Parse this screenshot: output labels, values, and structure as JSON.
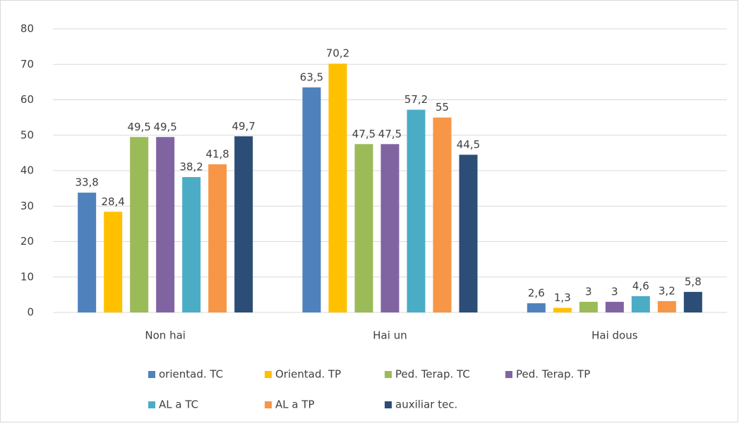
{
  "chart_data": {
    "type": "bar",
    "categories": [
      "Non hai",
      "Hai un",
      "Hai dous"
    ],
    "series": [
      {
        "name": "orientad. TC",
        "color": "#4f81bd",
        "values": [
          33.8,
          63.5,
          2.6
        ],
        "value_labels": [
          "33,8",
          "63,5",
          "2,6"
        ]
      },
      {
        "name": "Orientad. TP",
        "color": "#ffc000",
        "values": [
          28.4,
          70.2,
          1.3
        ],
        "value_labels": [
          "28,4",
          "70,2",
          "1,3"
        ]
      },
      {
        "name": "Ped. Terap. TC",
        "color": "#9bbb59",
        "values": [
          49.5,
          47.5,
          3
        ],
        "value_labels": [
          "49,5",
          "47,5",
          "3"
        ]
      },
      {
        "name": "Ped. Terap. TP",
        "color": "#8064a2",
        "values": [
          49.5,
          47.5,
          3
        ],
        "value_labels": [
          "49,5",
          "47,5",
          "3"
        ]
      },
      {
        "name": "AL a TC",
        "color": "#4bacc6",
        "values": [
          38.2,
          57.2,
          4.6
        ],
        "value_labels": [
          "38,2",
          "57,2",
          "4,6"
        ]
      },
      {
        "name": "AL a TP",
        "color": "#f79646",
        "values": [
          41.8,
          55,
          3.2
        ],
        "value_labels": [
          "41,8",
          "55",
          "3,2"
        ]
      },
      {
        "name": "auxiliar tec.",
        "color": "#2c4d75",
        "values": [
          49.7,
          44.5,
          5.8
        ],
        "value_labels": [
          "49,7",
          "44,5",
          "5,8"
        ]
      }
    ],
    "ylim": [
      0,
      80
    ],
    "yticks": [
      0,
      10,
      20,
      30,
      40,
      50,
      60,
      70,
      80
    ],
    "grid": true,
    "legend": "bottom"
  }
}
